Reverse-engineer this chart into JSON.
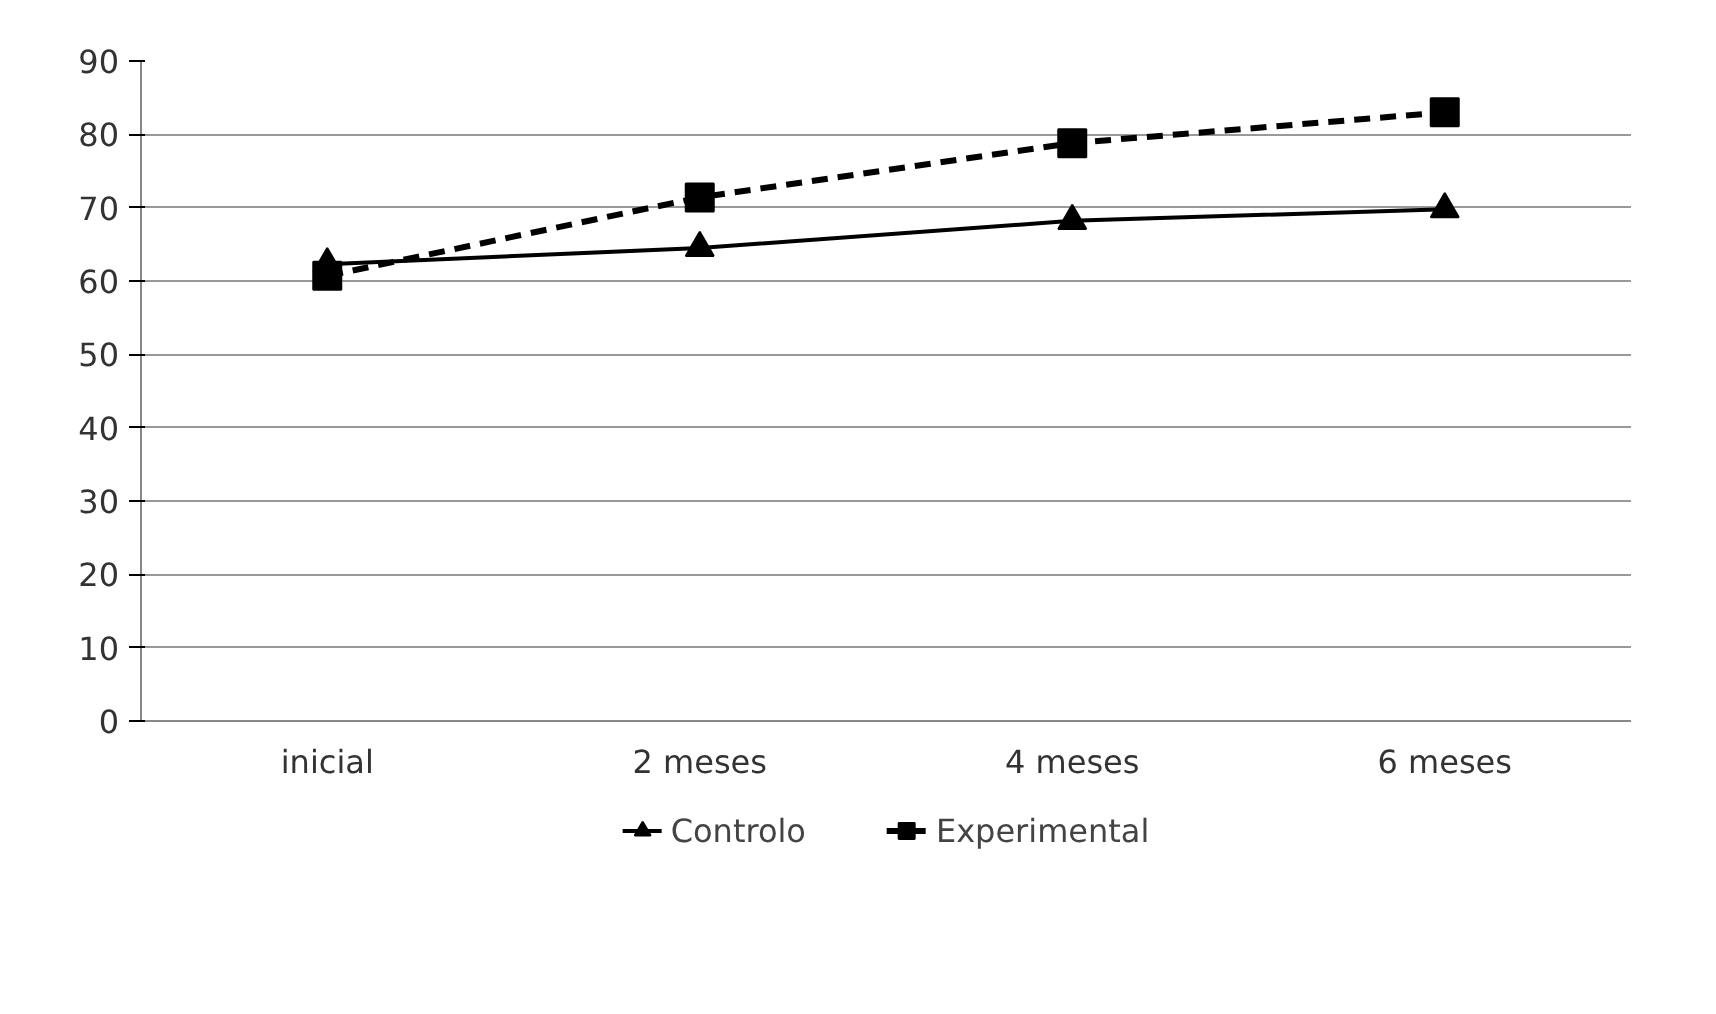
{
  "chart_data": {
    "type": "line",
    "categories": [
      "inicial",
      "2 meses",
      "4 meses",
      "6 meses"
    ],
    "series": [
      {
        "name": "Controlo",
        "color": "#000000",
        "values": [
          62.3,
          64.5,
          68.2,
          69.8
        ],
        "marker": "triangle",
        "line_style": "solid"
      },
      {
        "name": "Experimental",
        "color": "#000000",
        "values": [
          60.7,
          71.4,
          78.8,
          83.0
        ],
        "marker": "square",
        "line_style": "dashed"
      }
    ],
    "ylim": [
      0,
      90
    ],
    "yticks": [
      0,
      10,
      20,
      30,
      40,
      50,
      60,
      70,
      80,
      90
    ],
    "grid": "y",
    "legend": "bottom"
  }
}
